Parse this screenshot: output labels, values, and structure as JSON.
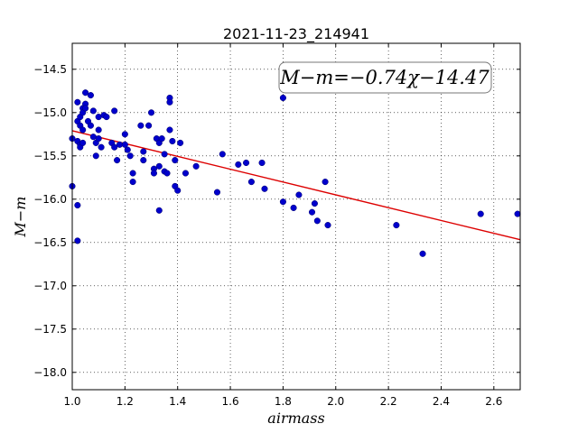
{
  "chart_data": {
    "type": "scatter",
    "title": "2021-11-23_214941",
    "xlabel": "airmass",
    "ylabel": "M−m",
    "xlim": [
      1.0,
      2.7
    ],
    "ylim": [
      -18.2,
      -14.2
    ],
    "y_inverted": true,
    "grid": true,
    "x_ticks": [
      "1.0",
      "1.2",
      "1.4",
      "1.6",
      "1.8",
      "2.0",
      "2.2",
      "2.4",
      "2.6"
    ],
    "y_ticks": [
      "−14.5",
      "−15.0",
      "−15.5",
      "−16.0",
      "−16.5",
      "−17.0",
      "−17.5",
      "−18.0"
    ],
    "annotation": "M−m=−0.74χ−14.47",
    "fit_line": {
      "slope": -0.74,
      "intercept": -14.47
    },
    "point_color": "#0000cc",
    "line_color": "#dd0000",
    "points": [
      [
        1.0,
        -15.3
      ],
      [
        1.0,
        -15.85
      ],
      [
        1.02,
        -14.88
      ],
      [
        1.02,
        -15.1
      ],
      [
        1.02,
        -15.33
      ],
      [
        1.02,
        -16.07
      ],
      [
        1.02,
        -16.48
      ],
      [
        1.03,
        -15.05
      ],
      [
        1.03,
        -15.15
      ],
      [
        1.03,
        -15.37
      ],
      [
        1.03,
        -15.4
      ],
      [
        1.04,
        -14.95
      ],
      [
        1.04,
        -15.0
      ],
      [
        1.04,
        -15.2
      ],
      [
        1.04,
        -15.35
      ],
      [
        1.05,
        -14.77
      ],
      [
        1.05,
        -14.9
      ],
      [
        1.05,
        -14.95
      ],
      [
        1.06,
        -15.1
      ],
      [
        1.07,
        -14.8
      ],
      [
        1.07,
        -15.15
      ],
      [
        1.08,
        -14.98
      ],
      [
        1.08,
        -15.28
      ],
      [
        1.09,
        -15.35
      ],
      [
        1.09,
        -15.5
      ],
      [
        1.1,
        -15.05
      ],
      [
        1.1,
        -15.2
      ],
      [
        1.1,
        -15.3
      ],
      [
        1.11,
        -15.4
      ],
      [
        1.12,
        -15.03
      ],
      [
        1.13,
        -15.05
      ],
      [
        1.15,
        -15.35
      ],
      [
        1.16,
        -15.4
      ],
      [
        1.16,
        -14.98
      ],
      [
        1.17,
        -15.55
      ],
      [
        1.18,
        -15.37
      ],
      [
        1.2,
        -15.25
      ],
      [
        1.2,
        -15.37
      ],
      [
        1.21,
        -15.43
      ],
      [
        1.22,
        -15.5
      ],
      [
        1.23,
        -15.8
      ],
      [
        1.23,
        -15.7
      ],
      [
        1.26,
        -15.15
      ],
      [
        1.27,
        -15.55
      ],
      [
        1.27,
        -15.45
      ],
      [
        1.29,
        -15.15
      ],
      [
        1.3,
        -15.0
      ],
      [
        1.31,
        -15.65
      ],
      [
        1.31,
        -15.7
      ],
      [
        1.32,
        -15.3
      ],
      [
        1.33,
        -15.35
      ],
      [
        1.33,
        -15.62
      ],
      [
        1.33,
        -16.13
      ],
      [
        1.34,
        -15.3
      ],
      [
        1.35,
        -15.48
      ],
      [
        1.35,
        -15.68
      ],
      [
        1.36,
        -15.7
      ],
      [
        1.37,
        -14.83
      ],
      [
        1.37,
        -14.88
      ],
      [
        1.37,
        -15.2
      ],
      [
        1.38,
        -15.33
      ],
      [
        1.39,
        -15.55
      ],
      [
        1.39,
        -15.85
      ],
      [
        1.4,
        -15.9
      ],
      [
        1.41,
        -15.35
      ],
      [
        1.43,
        -15.7
      ],
      [
        1.47,
        -15.62
      ],
      [
        1.55,
        -15.92
      ],
      [
        1.57,
        -15.48
      ],
      [
        1.63,
        -15.6
      ],
      [
        1.66,
        -15.58
      ],
      [
        1.68,
        -15.8
      ],
      [
        1.72,
        -15.58
      ],
      [
        1.73,
        -15.88
      ],
      [
        1.8,
        -14.83
      ],
      [
        1.8,
        -16.03
      ],
      [
        1.84,
        -16.1
      ],
      [
        1.86,
        -15.95
      ],
      [
        1.91,
        -16.15
      ],
      [
        1.92,
        -16.05
      ],
      [
        1.93,
        -16.25
      ],
      [
        1.96,
        -15.8
      ],
      [
        1.97,
        -16.3
      ],
      [
        2.23,
        -16.3
      ],
      [
        2.33,
        -16.63
      ],
      [
        2.55,
        -16.17
      ],
      [
        2.69,
        -16.17
      ]
    ]
  }
}
